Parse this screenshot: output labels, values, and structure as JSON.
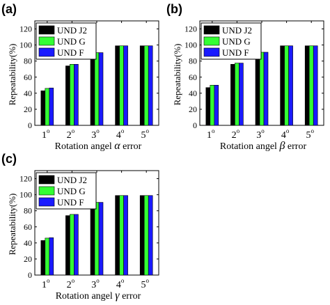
{
  "colors": {
    "und_j2": "#000000",
    "und_g": "#33ff33",
    "und_f": "#1a1aff"
  },
  "chart_data": [
    {
      "type": "bar",
      "panel_label": "(a)",
      "categories": [
        "1",
        "2",
        "3",
        "4",
        "5"
      ],
      "category_superscript": "o",
      "ylabel": "Repeatability(%)",
      "xlabel_prefix": "Rotation angel",
      "xlabel_symbol": "α",
      "xlabel_suffix": "error",
      "ylim": [
        0,
        130
      ],
      "yticks": [
        "0",
        "20",
        "40",
        "60",
        "80",
        "100",
        "120"
      ],
      "legend_position": "top-left",
      "grid": false,
      "series": [
        {
          "name": "UND J2",
          "values": [
            43,
            74,
            90,
            99,
            99
          ]
        },
        {
          "name": "UND G",
          "values": [
            46,
            76,
            90.5,
            99,
            99
          ]
        },
        {
          "name": "UND F",
          "values": [
            46.5,
            76,
            90.5,
            99,
            99
          ]
        }
      ]
    },
    {
      "type": "bar",
      "panel_label": "(b)",
      "categories": [
        "1",
        "2",
        "3",
        "4",
        "5"
      ],
      "category_superscript": "o",
      "ylabel": "Repeatability(%)",
      "xlabel_prefix": "Rotation angel",
      "xlabel_symbol": "β",
      "xlabel_suffix": "error",
      "ylim": [
        0,
        130
      ],
      "yticks": [
        "0",
        "20",
        "40",
        "60",
        "80",
        "100",
        "120"
      ],
      "legend_position": "top-left",
      "grid": false,
      "series": [
        {
          "name": "UND J2",
          "values": [
            47,
            76,
            90,
            99,
            99
          ]
        },
        {
          "name": "UND G",
          "values": [
            50,
            77.5,
            91,
            99,
            99
          ]
        },
        {
          "name": "UND F",
          "values": [
            50,
            77.5,
            91,
            99,
            99
          ]
        }
      ]
    },
    {
      "type": "bar",
      "panel_label": "(c)",
      "categories": [
        "1",
        "2",
        "3",
        "4",
        "5"
      ],
      "category_superscript": "o",
      "ylabel": "Repeatability(%)",
      "xlabel_prefix": "Rotation angel",
      "xlabel_symbol": "γ",
      "xlabel_suffix": "error",
      "ylim": [
        0,
        130
      ],
      "yticks": [
        "0",
        "20",
        "40",
        "60",
        "80",
        "100",
        "120"
      ],
      "legend_position": "top-left",
      "grid": false,
      "series": [
        {
          "name": "UND J2",
          "values": [
            43,
            74,
            90,
            99,
            99
          ]
        },
        {
          "name": "UND G",
          "values": [
            46,
            75.5,
            90.5,
            99,
            99
          ]
        },
        {
          "name": "UND F",
          "values": [
            46.5,
            75.5,
            90.5,
            99,
            99
          ]
        }
      ]
    }
  ]
}
